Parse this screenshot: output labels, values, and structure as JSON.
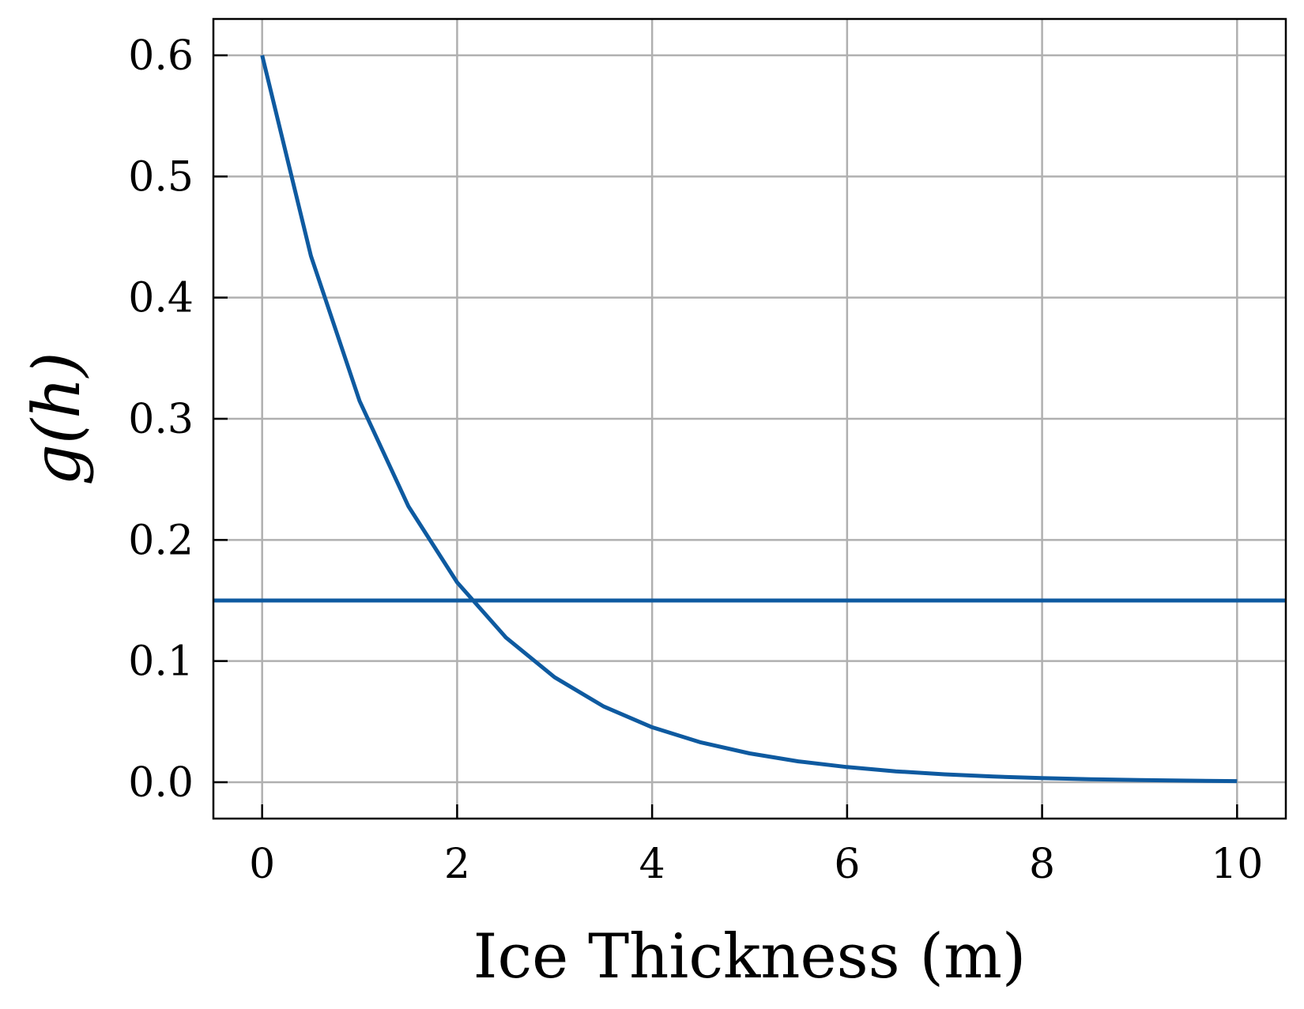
{
  "chart_data": {
    "type": "line",
    "title": "",
    "xlabel": "Ice Thickness (m)",
    "ylabel": "g(h)",
    "xlim": [
      -0.5,
      10.5
    ],
    "ylim": [
      -0.03,
      0.63
    ],
    "xticks": [
      0,
      2,
      4,
      6,
      8,
      10
    ],
    "xtick_labels": [
      "0",
      "2",
      "4",
      "6",
      "8",
      "10"
    ],
    "yticks": [
      0.0,
      0.1,
      0.2,
      0.3,
      0.4,
      0.5,
      0.6
    ],
    "ytick_labels": [
      "0.0",
      "0.1",
      "0.2",
      "0.3",
      "0.4",
      "0.5",
      "0.6"
    ],
    "grid": true,
    "legend": "none",
    "line_color": "#0e5aa0",
    "grid_color": "#b0b0b0",
    "series": [
      {
        "x": [
          0,
          0.5,
          1,
          1.5,
          2,
          2.5,
          3,
          3.5,
          4,
          4.5,
          5,
          5.5,
          6,
          6.5,
          7,
          7.5,
          8,
          8.5,
          9,
          9.5,
          10
        ],
        "values": [
          0.6,
          0.4345,
          0.3147,
          0.2279,
          0.165,
          0.1195,
          0.0866,
          0.0627,
          0.0454,
          0.0329,
          0.0238,
          0.0172,
          0.0125,
          0.009,
          0.0065,
          0.0047,
          0.0034,
          0.0025,
          0.0018,
          0.0013,
          0.0009
        ]
      },
      {
        "x": [
          -0.5,
          10.5
        ],
        "values": [
          0.15,
          0.15
        ]
      }
    ]
  }
}
